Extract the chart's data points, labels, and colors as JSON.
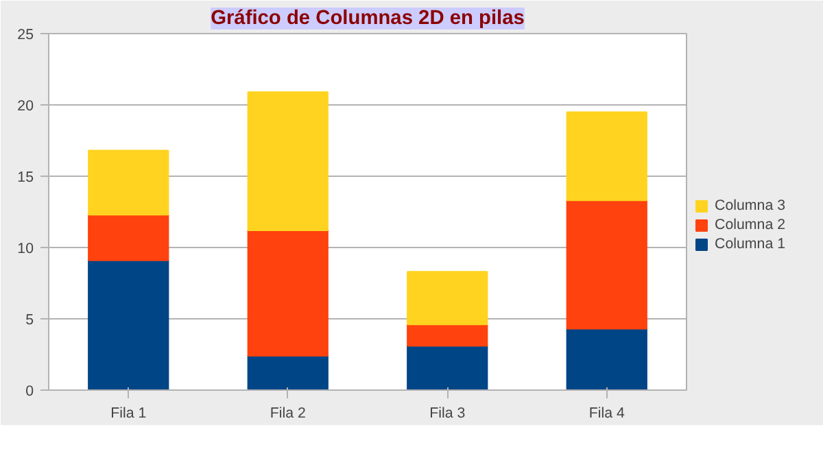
{
  "chart_data": {
    "type": "bar",
    "stacked": true,
    "title": "Gráfico de Columnas 2D en pilas",
    "categories": [
      "Fila 1",
      "Fila 2",
      "Fila 3",
      "Fila 4"
    ],
    "series": [
      {
        "name": "Columna 1",
        "color": "#004586",
        "values": [
          9.1,
          2.4,
          3.1,
          4.3
        ]
      },
      {
        "name": "Columna 2",
        "color": "#ff420e",
        "values": [
          3.2,
          8.8,
          1.5,
          9.0
        ]
      },
      {
        "name": "Columna 3",
        "color": "#ffd320",
        "values": [
          4.5,
          9.7,
          3.7,
          6.2
        ]
      }
    ],
    "ylim": [
      0,
      25
    ],
    "yticks": [
      0,
      5,
      10,
      15,
      20,
      25
    ],
    "grid": "y",
    "legend": "right"
  }
}
